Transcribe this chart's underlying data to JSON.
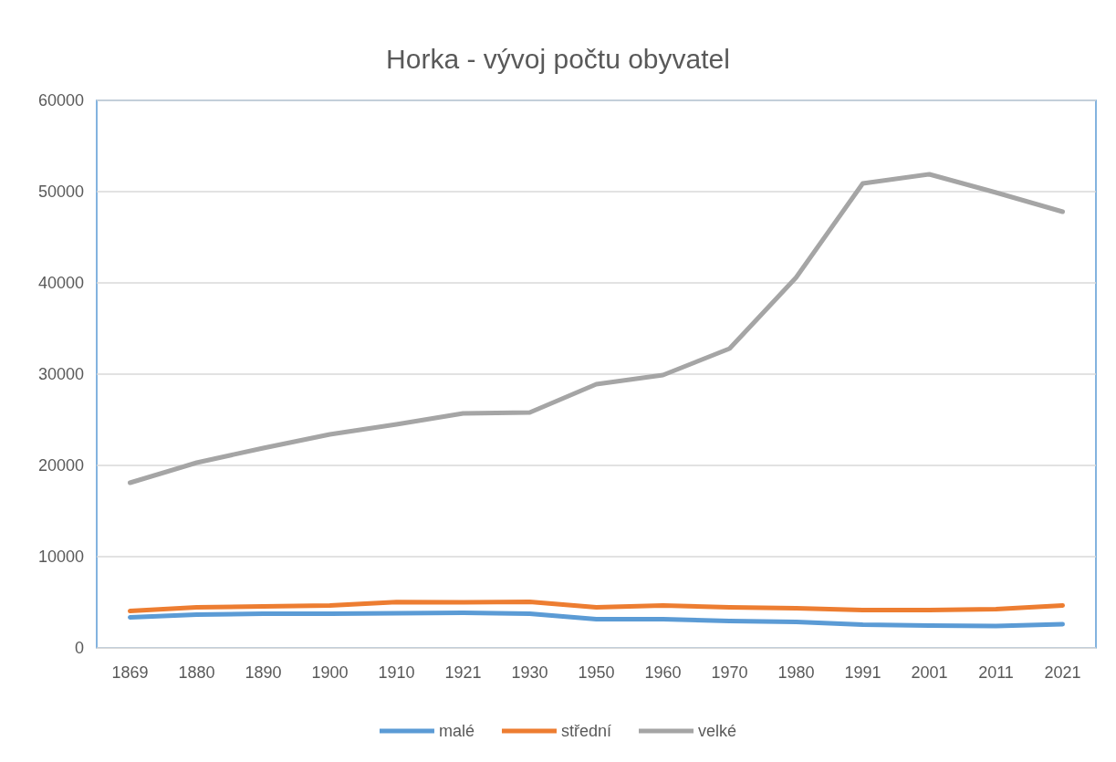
{
  "chart_data": {
    "type": "line",
    "title": "Horka - vývoj počtu obyvatel",
    "categories": [
      "1869",
      "1880",
      "1890",
      "1900",
      "1910",
      "1921",
      "1930",
      "1950",
      "1960",
      "1970",
      "1980",
      "1991",
      "2001",
      "2011",
      "2021"
    ],
    "series": [
      {
        "name": "malé",
        "color": "#5b9bd5",
        "values": [
          3350,
          3650,
          3750,
          3750,
          3800,
          3850,
          3750,
          3150,
          3150,
          2950,
          2850,
          2550,
          2450,
          2400,
          2600
        ]
      },
      {
        "name": "střední",
        "color": "#ed7d31",
        "values": [
          4050,
          4450,
          4550,
          4650,
          5030,
          5000,
          5050,
          4450,
          4650,
          4450,
          4350,
          4150,
          4150,
          4250,
          4650
        ]
      },
      {
        "name": "velké",
        "color": "#a5a5a5",
        "values": [
          18100,
          20300,
          21900,
          23400,
          24500,
          25700,
          25800,
          28900,
          29900,
          32800,
          40600,
          50900,
          51900,
          49900,
          47800
        ]
      }
    ],
    "ylim": [
      0,
      60000
    ],
    "yticks": [
      0,
      10000,
      20000,
      30000,
      40000,
      50000,
      60000
    ],
    "grid": "y",
    "legend": "bottom",
    "marker": "none",
    "line_style": "solid"
  }
}
